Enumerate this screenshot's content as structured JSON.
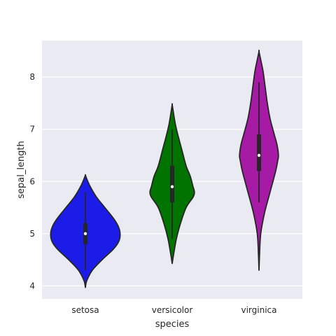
{
  "chart_data": {
    "type": "violin",
    "title": "",
    "xlabel": "species",
    "ylabel": "sepal_length",
    "ylim": [
      3.75,
      8.7
    ],
    "yticks": [
      4,
      5,
      6,
      7,
      8
    ],
    "grid": true,
    "categories": [
      "setosa",
      "versicolor",
      "virginica"
    ],
    "colors": [
      "#1c1ce8",
      "#017301",
      "#a61aa6"
    ],
    "series": [
      {
        "category": "setosa",
        "kde_min": 3.97,
        "kde_max": 6.12,
        "whisker_low": 4.3,
        "q1": 4.8,
        "median": 5.0,
        "q3": 5.2,
        "whisker_high": 5.8,
        "density_profile": [
          [
            3.97,
            0.0
          ],
          [
            4.1,
            2.0
          ],
          [
            4.3,
            10.0
          ],
          [
            4.5,
            24.0
          ],
          [
            4.7,
            40.0
          ],
          [
            4.85,
            48.0
          ],
          [
            5.0,
            50.0
          ],
          [
            5.15,
            47.0
          ],
          [
            5.3,
            40.0
          ],
          [
            5.5,
            28.0
          ],
          [
            5.7,
            16.0
          ],
          [
            5.9,
            7.0
          ],
          [
            6.05,
            2.0
          ],
          [
            6.12,
            0.0
          ]
        ]
      },
      {
        "category": "versicolor",
        "kde_min": 4.43,
        "kde_max": 7.47,
        "whisker_low": 4.9,
        "q1": 5.6,
        "median": 5.9,
        "q3": 6.3,
        "whisker_high": 7.0,
        "density_profile": [
          [
            4.43,
            0.0
          ],
          [
            4.6,
            2.0
          ],
          [
            4.9,
            6.0
          ],
          [
            5.2,
            12.0
          ],
          [
            5.5,
            20.0
          ],
          [
            5.7,
            30.0
          ],
          [
            5.8,
            32.0
          ],
          [
            5.9,
            30.0
          ],
          [
            6.1,
            26.0
          ],
          [
            6.3,
            20.0
          ],
          [
            6.6,
            14.0
          ],
          [
            6.9,
            8.0
          ],
          [
            7.1,
            4.5
          ],
          [
            7.3,
            2.0
          ],
          [
            7.47,
            0.0
          ]
        ]
      },
      {
        "category": "virginica",
        "kde_min": 4.3,
        "kde_max": 8.49,
        "whisker_low": 5.6,
        "q1": 6.2,
        "median": 6.5,
        "q3": 6.9,
        "whisker_high": 7.9,
        "density_profile": [
          [
            4.3,
            0.0
          ],
          [
            4.6,
            0.8
          ],
          [
            5.0,
            2.5
          ],
          [
            5.4,
            8.0
          ],
          [
            5.8,
            16.0
          ],
          [
            6.2,
            24.0
          ],
          [
            6.4,
            27.0
          ],
          [
            6.5,
            28.0
          ],
          [
            6.7,
            26.0
          ],
          [
            6.9,
            22.0
          ],
          [
            7.2,
            16.0
          ],
          [
            7.5,
            12.0
          ],
          [
            7.8,
            9.0
          ],
          [
            8.1,
            6.0
          ],
          [
            8.3,
            3.0
          ],
          [
            8.49,
            0.0
          ]
        ]
      }
    ]
  }
}
